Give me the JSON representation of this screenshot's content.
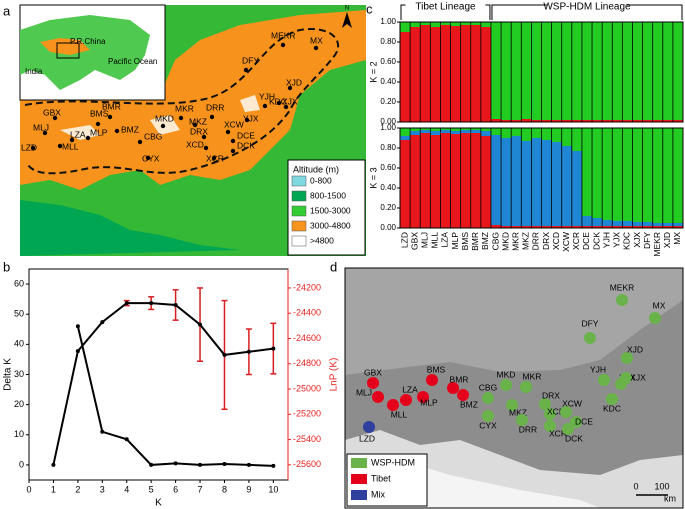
{
  "panel_labels": [
    "a",
    "b",
    "c",
    "d"
  ],
  "map_a": {
    "inset_labels": [
      "P.R.China",
      "India",
      "Pacific Ocean"
    ],
    "north": "N",
    "legend_title": "Altitude (m)",
    "legend": [
      {
        "label": "0-800",
        "color": "#7fd8e0"
      },
      {
        "label": "800-1500",
        "color": "#00a651"
      },
      {
        "label": "1500-3000",
        "color": "#33cc33"
      },
      {
        "label": "3000-4800",
        "color": "#f7941d"
      },
      {
        "label": ">4800",
        "color": "#ffffff"
      }
    ],
    "sites": [
      "LZD",
      "MLJ",
      "GBX",
      "LZA",
      "MLL",
      "MLP",
      "BMS",
      "BMR",
      "BMZ",
      "CBG",
      "CYX",
      "MKD",
      "MKR",
      "MKZ",
      "DRR",
      "DRX",
      "XCD",
      "XCW",
      "DCE",
      "DCK",
      "XCR",
      "YJX",
      "YJH",
      "KDC",
      "XJX",
      "XJD",
      "DFY",
      "MEKR",
      "MX"
    ]
  },
  "chart_data": [
    {
      "type": "line",
      "xlabel": "K",
      "ylabel": "Delta K",
      "y2label": "LnP (K)",
      "x": [
        1,
        2,
        3,
        4,
        5,
        6,
        7,
        8,
        9,
        10
      ],
      "xlim": [
        0,
        10.6
      ],
      "xticks": [
        0,
        1,
        2,
        3,
        4,
        5,
        6,
        7,
        8,
        9,
        10
      ],
      "ylim": [
        -5,
        65
      ],
      "yticks": [
        0,
        10,
        20,
        30,
        40,
        50,
        60
      ],
      "y2lim": [
        -25720,
        -24050
      ],
      "y2ticks": [
        -25600,
        -25400,
        -25200,
        -25000,
        -24800,
        -24600,
        -24400,
        -24200
      ],
      "y2color": "#e8221f",
      "series": [
        {
          "color": "#000000",
          "values": [
            null,
            46,
            11,
            8.5,
            0,
            0.5,
            0,
            0.3,
            0,
            -0.3
          ]
        },
        {
          "axis": "y2",
          "color": "#000000",
          "error_color": "#d81e1e",
          "values": [
            -25600,
            -24700,
            -24470,
            -24320,
            -24320,
            -24335,
            -24490,
            -24730,
            -24705,
            -24680
          ],
          "errors": [
            0,
            0,
            0,
            20,
            50,
            120,
            290,
            430,
            180,
            200
          ]
        }
      ]
    }
  ],
  "structure": {
    "groups": [
      "Tibet Lineage",
      "WSP-HDM Lineage"
    ],
    "k_labels": [
      "K = 2",
      "K = 3"
    ],
    "yticks": [
      {
        "value": 0,
        "label": "0.00"
      },
      {
        "value": 0.2,
        "label": "0.20"
      },
      {
        "value": 0.4,
        "label": "0.40"
      },
      {
        "value": 0.6,
        "label": "0.60"
      },
      {
        "value": 0.8,
        "label": "0.80"
      },
      {
        "value": 1,
        "label": "1.00"
      }
    ],
    "populations": [
      "LZD",
      "GBX",
      "MLJ",
      "MLL",
      "LZA",
      "MLP",
      "BMS",
      "BMR",
      "BMZ",
      "CBG",
      "MKD",
      "MKR",
      "MKZ",
      "DRR",
      "DRX",
      "XCD",
      "XCW",
      "XCR",
      "DCE",
      "DCK",
      "YJH",
      "YJX",
      "KDC",
      "XJX",
      "DFY",
      "MEKR",
      "XJD",
      "MX"
    ],
    "k2_colors": [
      "#e8171b",
      "#22cc22"
    ],
    "k3_colors": [
      "#e8171b",
      "#1f86d4",
      "#22cc22"
    ],
    "k2": [
      [
        0.9,
        0.1
      ],
      [
        0.95,
        0.05
      ],
      [
        0.97,
        0.03
      ],
      [
        0.95,
        0.05
      ],
      [
        0.97,
        0.03
      ],
      [
        0.96,
        0.04
      ],
      [
        0.97,
        0.03
      ],
      [
        0.97,
        0.03
      ],
      [
        0.95,
        0.05
      ],
      [
        0.03,
        0.97
      ],
      [
        0.02,
        0.98
      ],
      [
        0.02,
        0.98
      ],
      [
        0.03,
        0.97
      ],
      [
        0.02,
        0.98
      ],
      [
        0.02,
        0.98
      ],
      [
        0.02,
        0.98
      ],
      [
        0.02,
        0.98
      ],
      [
        0.02,
        0.98
      ],
      [
        0.02,
        0.98
      ],
      [
        0.02,
        0.98
      ],
      [
        0.02,
        0.98
      ],
      [
        0.02,
        0.98
      ],
      [
        0.02,
        0.98
      ],
      [
        0.02,
        0.98
      ],
      [
        0.02,
        0.98
      ],
      [
        0.02,
        0.98
      ],
      [
        0.02,
        0.98
      ],
      [
        0.02,
        0.98
      ]
    ],
    "k3": [
      [
        0.88,
        0.04,
        0.08
      ],
      [
        0.93,
        0.04,
        0.03
      ],
      [
        0.95,
        0.03,
        0.02
      ],
      [
        0.93,
        0.04,
        0.03
      ],
      [
        0.95,
        0.03,
        0.02
      ],
      [
        0.94,
        0.03,
        0.03
      ],
      [
        0.95,
        0.03,
        0.02
      ],
      [
        0.95,
        0.03,
        0.02
      ],
      [
        0.92,
        0.05,
        0.03
      ],
      [
        0.03,
        0.9,
        0.07
      ],
      [
        0.02,
        0.88,
        0.1
      ],
      [
        0.02,
        0.9,
        0.08
      ],
      [
        0.02,
        0.85,
        0.13
      ],
      [
        0.02,
        0.88,
        0.1
      ],
      [
        0.02,
        0.86,
        0.12
      ],
      [
        0.02,
        0.84,
        0.14
      ],
      [
        0.02,
        0.8,
        0.18
      ],
      [
        0.02,
        0.75,
        0.23
      ],
      [
        0.02,
        0.1,
        0.88
      ],
      [
        0.02,
        0.08,
        0.9
      ],
      [
        0.02,
        0.06,
        0.92
      ],
      [
        0.02,
        0.05,
        0.93
      ],
      [
        0.02,
        0.05,
        0.93
      ],
      [
        0.02,
        0.04,
        0.94
      ],
      [
        0.02,
        0.04,
        0.94
      ],
      [
        0.02,
        0.03,
        0.95
      ],
      [
        0.02,
        0.03,
        0.95
      ],
      [
        0.02,
        0.03,
        0.95
      ]
    ]
  },
  "map_d": {
    "legend": [
      {
        "label": "WSP-HDM",
        "color": "#6ab34a"
      },
      {
        "label": "Tibet",
        "color": "#e4001b"
      },
      {
        "label": "Mix",
        "color": "#2e3f9e"
      }
    ],
    "scale": [
      "0",
      "100",
      "km"
    ],
    "sites": [
      {
        "name": "GBX",
        "color": "#e4001b"
      },
      {
        "name": "MLJ",
        "color": "#e4001b"
      },
      {
        "name": "LZD",
        "color": "#2e3f9e"
      },
      {
        "name": "MLL",
        "color": "#e4001b"
      },
      {
        "name": "LZA",
        "color": "#e4001b"
      },
      {
        "name": "MLP",
        "color": "#e4001b"
      },
      {
        "name": "BMS",
        "color": "#e4001b"
      },
      {
        "name": "BMR",
        "color": "#e4001b"
      },
      {
        "name": "BMZ",
        "color": "#e4001b"
      },
      {
        "name": "CBG",
        "color": "#6ab34a"
      },
      {
        "name": "CYX",
        "color": "#6ab34a"
      },
      {
        "name": "MKD",
        "color": "#6ab34a"
      },
      {
        "name": "MKR",
        "color": "#6ab34a"
      },
      {
        "name": "MKZ",
        "color": "#6ab34a"
      },
      {
        "name": "DRX",
        "color": "#6ab34a"
      },
      {
        "name": "DRR",
        "color": "#6ab34a"
      },
      {
        "name": "XCD",
        "color": "#6ab34a"
      },
      {
        "name": "XCW",
        "color": "#6ab34a"
      },
      {
        "name": "XCR",
        "color": "#6ab34a"
      },
      {
        "name": "DCE",
        "color": "#6ab34a"
      },
      {
        "name": "DCK",
        "color": "#6ab34a"
      },
      {
        "name": "YJH",
        "color": "#6ab34a"
      },
      {
        "name": "YJX",
        "color": "#6ab34a"
      },
      {
        "name": "KDC",
        "color": "#6ab34a"
      },
      {
        "name": "XJX",
        "color": "#6ab34a"
      },
      {
        "name": "XJD",
        "color": "#6ab34a"
      },
      {
        "name": "DFY",
        "color": "#6ab34a"
      },
      {
        "name": "MEKR",
        "color": "#6ab34a"
      },
      {
        "name": "MX",
        "color": "#6ab34a"
      }
    ]
  }
}
